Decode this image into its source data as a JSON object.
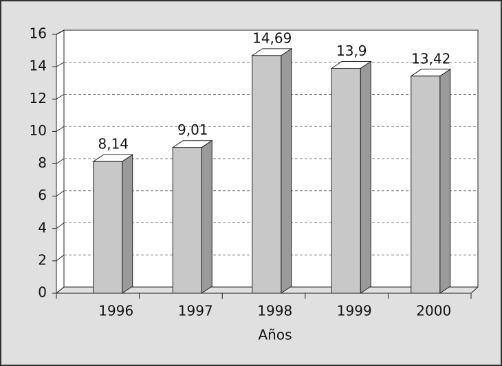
{
  "chart_data": {
    "type": "bar3d",
    "x_label": "Años",
    "categories": [
      "1996",
      "1997",
      "1998",
      "1999",
      "2000"
    ],
    "values": [
      8.14,
      9.01,
      14.69,
      13.9,
      13.42
    ],
    "value_labels": [
      "8,14",
      "9,01",
      "14,69",
      "13,9",
      "13,42"
    ],
    "color": "#c8c8c8",
    "ylim": [
      0,
      16
    ],
    "yticks": [
      0,
      2,
      4,
      6,
      8,
      10,
      12,
      14,
      16
    ],
    "grid": true
  }
}
